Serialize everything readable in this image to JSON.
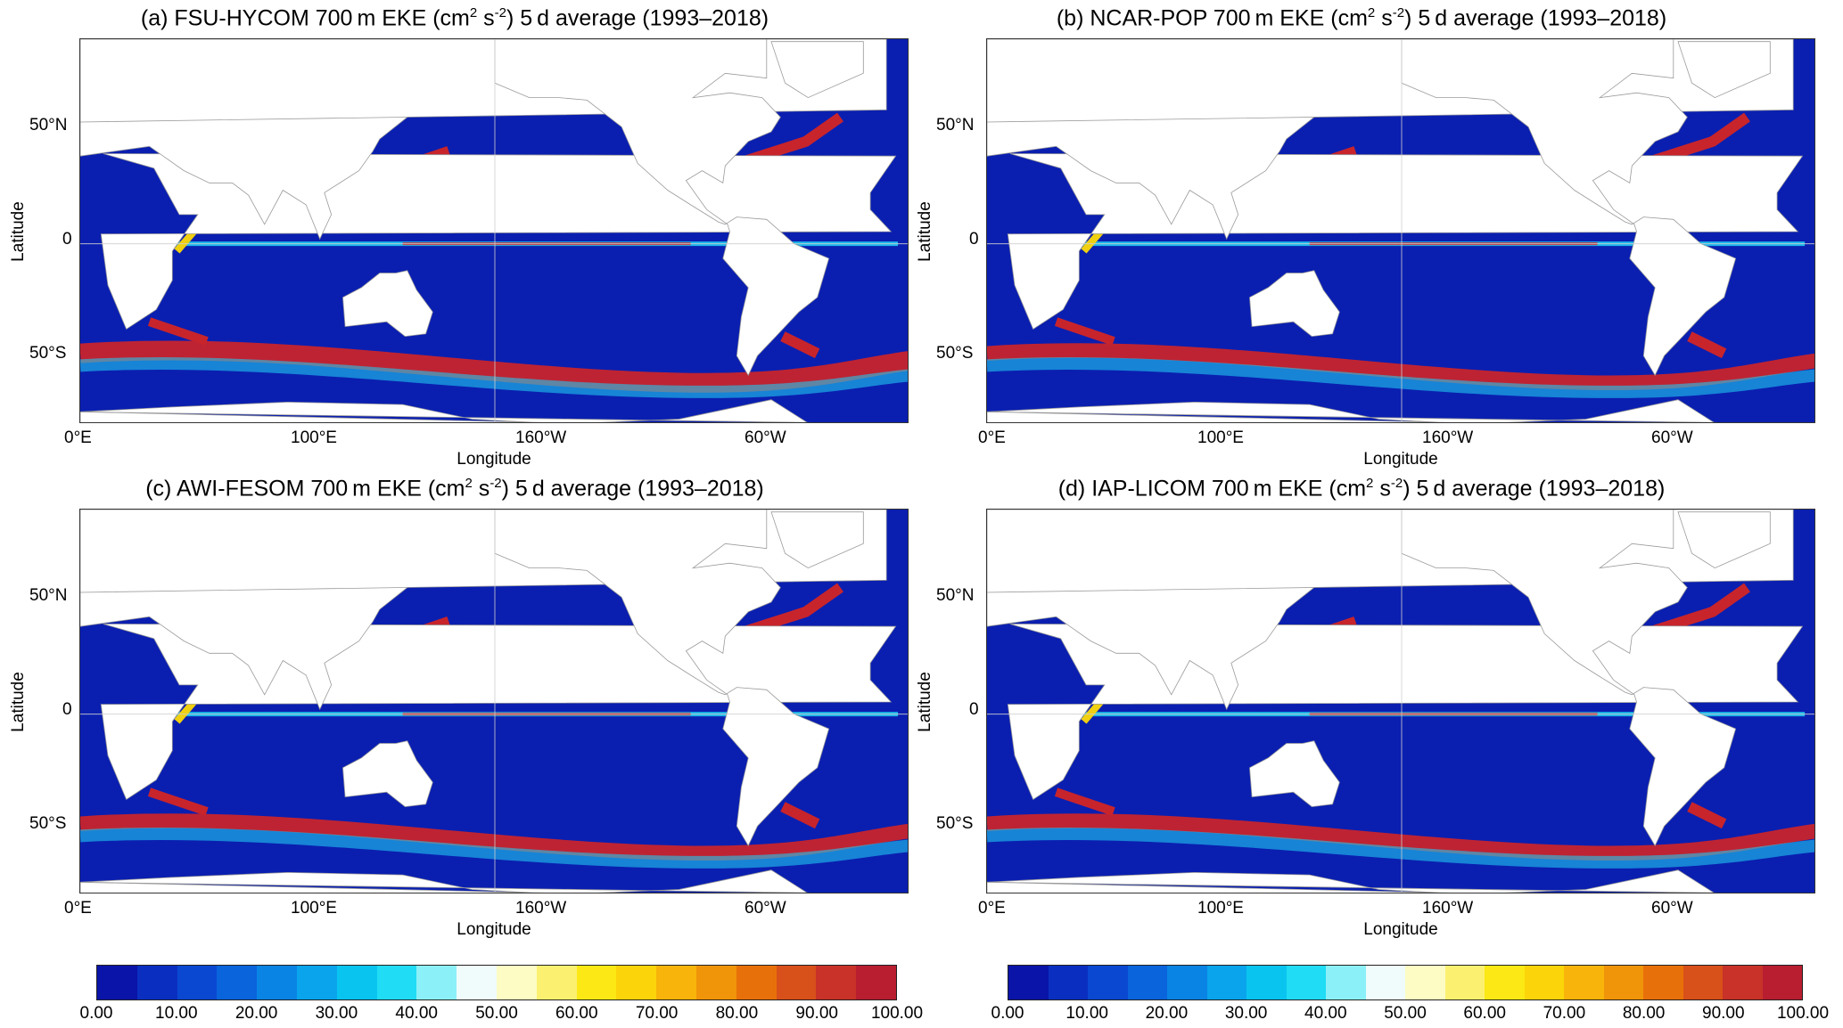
{
  "panels": [
    {
      "id": "a",
      "title_pre": "(a) FSU-HYCOM 700 m EKE (cm",
      "sup1": "2",
      "title_mid": " s",
      "sup2": "-2",
      "title_post": ") 5 d average (1993–2018)"
    },
    {
      "id": "b",
      "title_pre": "(b) NCAR-POP 700 m EKE (cm",
      "sup1": "2",
      "title_mid": " s",
      "sup2": "-2",
      "title_post": ") 5 d average (1993–2018)"
    },
    {
      "id": "c",
      "title_pre": "(c) AWI-FESOM 700 m EKE (cm",
      "sup1": "2",
      "title_mid": " s",
      "sup2": "-2",
      "title_post": ") 5 d average (1993–2018)"
    },
    {
      "id": "d",
      "title_pre": "(d) IAP-LICOM 700 m EKE (cm",
      "sup1": "2",
      "title_mid": " s",
      "sup2": "-2",
      "title_post": ") 5 d average (1993–2018)"
    }
  ],
  "axes": {
    "ylabel": "Latitude",
    "xlabel": "Longitude",
    "yticks": [
      "50°N",
      "0",
      "50°S"
    ],
    "xticks": [
      "0°E",
      "100°E",
      "160°W",
      "60°W"
    ]
  },
  "colorbar": {
    "labels": [
      "0.00",
      "10.00",
      "20.00",
      "30.00",
      "40.00",
      "50.00",
      "60.00",
      "70.00",
      "80.00",
      "90.00",
      "100.00"
    ],
    "colors": [
      "#0a14a8",
      "#0a2fc0",
      "#0a48d2",
      "#0a64dc",
      "#0a84e4",
      "#0aa4ec",
      "#0ac4f0",
      "#20dcf4",
      "#8cf0f8",
      "#f0fcfc",
      "#fcfcc4",
      "#fcf070",
      "#fce814",
      "#fcd40a",
      "#f8b40a",
      "#f0940a",
      "#e8700a",
      "#d8501a",
      "#c83228",
      "#b81e30"
    ],
    "min": 0,
    "max": 100
  },
  "colors": {
    "ocean": "#0a1fb0",
    "land": "#ffffff",
    "coast": "#9a9a9a",
    "high": "#c8242c",
    "mid": "#f0d010",
    "jet": "#20c8f0"
  }
}
